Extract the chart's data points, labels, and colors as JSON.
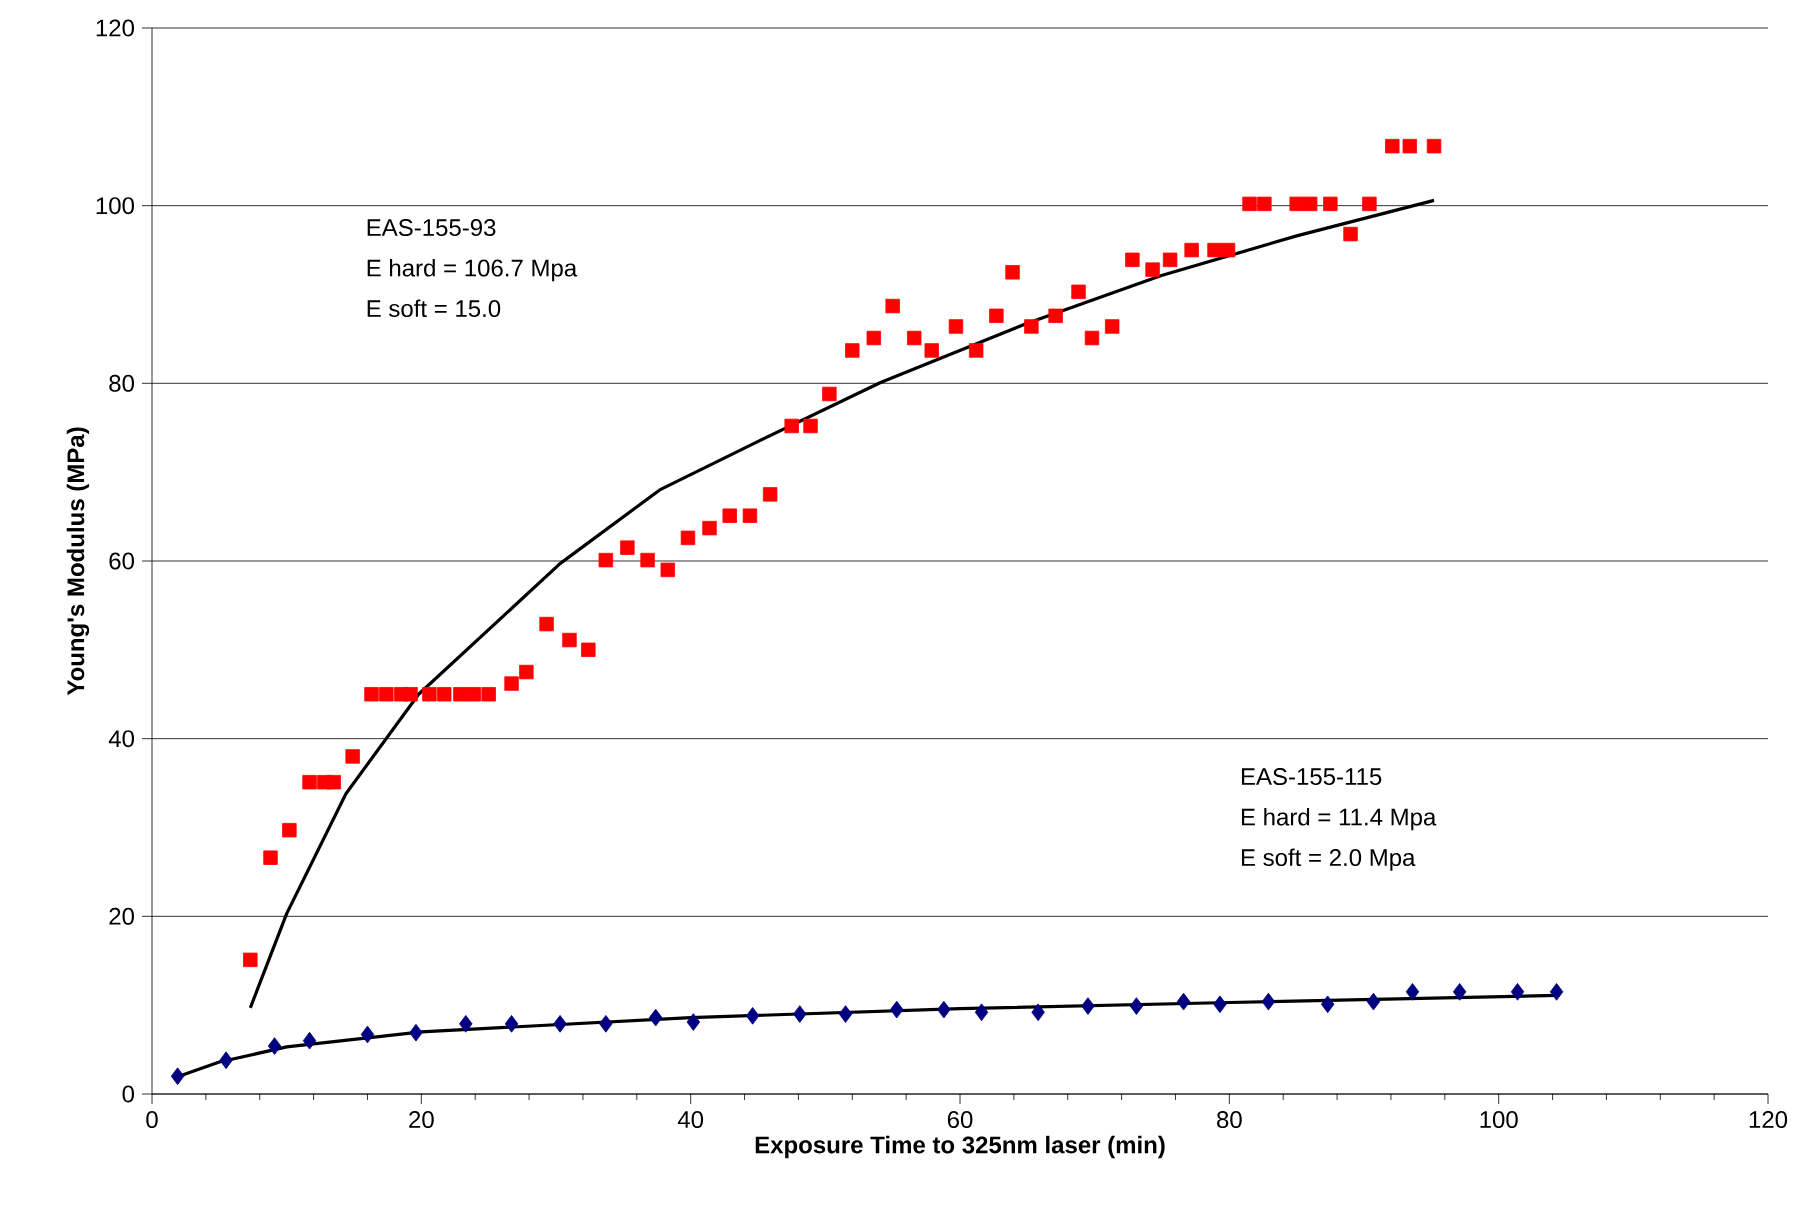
{
  "chart_data": {
    "type": "scatter",
    "xlabel": "Exposure Time to 325nm laser (min)",
    "ylabel": "Young's Modulus (MPa)",
    "xlim": [
      0,
      120
    ],
    "xticks": [
      0,
      20,
      40,
      60,
      80,
      100,
      120
    ],
    "ylim": [
      0,
      120
    ],
    "yticks": [
      0,
      20,
      40,
      60,
      80,
      100,
      120
    ],
    "grid": "y",
    "annotations": [
      "EAS-155-93",
      "E hard = 106.7 Mpa",
      "E soft = 15.0",
      "EAS-155-115",
      "E hard = 11.4 Mpa",
      "E soft = 2.0 Mpa"
    ],
    "series": [
      {
        "marker": "square",
        "color": "#ff0000",
        "x": [
          7.3,
          8.8,
          10.2,
          11.7,
          12.8,
          13.5,
          14.9,
          16.3,
          17.4,
          18.5,
          19.2,
          20.6,
          21.7,
          22.9,
          23.9,
          25.0,
          26.7,
          27.8,
          29.3,
          31.0,
          32.4,
          33.7,
          35.3,
          36.8,
          38.3,
          39.8,
          41.4,
          42.9,
          44.4,
          45.9,
          47.5,
          48.9,
          50.3,
          52.0,
          53.6,
          55.0,
          56.6,
          57.9,
          59.7,
          61.2,
          62.7,
          63.9,
          65.3,
          67.1,
          68.8,
          69.8,
          71.3,
          72.8,
          74.3,
          75.6,
          77.2,
          78.9,
          79.9,
          81.5,
          82.6,
          85.0,
          86.0,
          87.5,
          89.0,
          90.4,
          92.1,
          93.4,
          95.2
        ],
        "values": [
          15.1,
          26.6,
          29.7,
          35.1,
          35.1,
          35.1,
          38.0,
          45.0,
          45.0,
          45.0,
          45.0,
          45.0,
          45.0,
          45.0,
          45.0,
          45.0,
          46.2,
          47.5,
          52.9,
          51.1,
          50.0,
          60.1,
          61.5,
          60.1,
          59.0,
          62.6,
          63.7,
          65.1,
          65.1,
          67.5,
          75.2,
          75.2,
          78.8,
          83.7,
          85.1,
          88.7,
          85.1,
          83.7,
          86.4,
          83.7,
          87.6,
          92.5,
          86.4,
          87.6,
          90.3,
          85.1,
          86.4,
          93.9,
          92.8,
          93.9,
          95.0,
          95.0,
          95.0,
          100.2,
          100.2,
          100.2,
          100.2,
          100.2,
          96.8,
          100.2,
          106.7,
          106.7,
          106.7
        ]
      },
      {
        "type": "line",
        "marker": "none",
        "color": "#000000",
        "x": [
          7.3,
          10.0,
          14.4,
          19.8,
          30.3,
          37.7,
          45.2,
          54.1,
          64.9,
          74.9,
          85.0,
          95.2
        ],
        "values": [
          9.7,
          20.3,
          33.8,
          45.0,
          59.7,
          68.0,
          73.6,
          80.1,
          86.7,
          92.1,
          96.6,
          100.6
        ]
      },
      {
        "marker": "diamond",
        "color": "#000080",
        "x": [
          1.9,
          5.5,
          9.1,
          11.7,
          16.0,
          19.6,
          23.3,
          26.7,
          30.3,
          33.7,
          37.4,
          40.2,
          44.6,
          48.1,
          51.5,
          55.3,
          58.8,
          61.6,
          65.8,
          69.5,
          73.1,
          76.6,
          79.3,
          82.9,
          87.3,
          90.7,
          93.6,
          97.1,
          101.4,
          104.3
        ],
        "values": [
          2.0,
          3.8,
          5.4,
          6.0,
          6.7,
          6.9,
          7.9,
          7.9,
          7.9,
          7.9,
          8.6,
          8.1,
          8.8,
          9.0,
          9.0,
          9.5,
          9.5,
          9.2,
          9.2,
          9.9,
          9.9,
          10.4,
          10.1,
          10.4,
          10.1,
          10.4,
          11.5,
          11.5,
          11.5,
          11.5
        ]
      },
      {
        "type": "line",
        "marker": "none",
        "color": "#000000",
        "x": [
          2.0,
          5.0,
          10.0,
          20.0,
          40.0,
          60.0,
          80.0,
          104.3
        ],
        "values": [
          2.0,
          3.6,
          5.3,
          7.0,
          8.6,
          9.6,
          10.3,
          11.1
        ]
      }
    ]
  }
}
